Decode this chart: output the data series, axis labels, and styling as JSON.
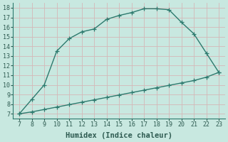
{
  "upper_x": [
    7,
    8,
    9,
    10,
    11,
    12,
    13,
    14,
    15,
    16,
    17,
    18,
    19,
    20,
    21,
    22,
    23
  ],
  "upper_y": [
    7.0,
    8.5,
    10.0,
    13.5,
    14.8,
    15.5,
    15.8,
    16.8,
    17.2,
    17.5,
    17.9,
    17.9,
    17.8,
    16.5,
    15.3,
    13.3,
    11.3
  ],
  "lower_x": [
    7,
    8,
    9,
    10,
    11,
    12,
    13,
    14,
    15,
    16,
    17,
    18,
    19,
    20,
    21,
    22,
    23
  ],
  "lower_y": [
    7.0,
    7.2,
    7.45,
    7.7,
    7.95,
    8.2,
    8.45,
    8.7,
    8.95,
    9.2,
    9.45,
    9.7,
    9.95,
    10.2,
    10.45,
    10.8,
    11.3
  ],
  "line_color": "#2d7a6e",
  "bg_color": "#c8e8e0",
  "grid_color": "#b8d8d0",
  "xlabel": "Humidex (Indice chaleur)",
  "xlim": [
    6.5,
    23.5
  ],
  "ylim": [
    6.5,
    18.5
  ],
  "xticks": [
    7,
    8,
    9,
    10,
    11,
    12,
    13,
    14,
    15,
    16,
    17,
    18,
    19,
    20,
    21,
    22,
    23
  ],
  "yticks": [
    7,
    8,
    9,
    10,
    11,
    12,
    13,
    14,
    15,
    16,
    17,
    18
  ],
  "marker": "+",
  "marker_size": 4,
  "line_width": 1.0,
  "xlabel_fontsize": 7.5,
  "tick_fontsize": 6.0
}
